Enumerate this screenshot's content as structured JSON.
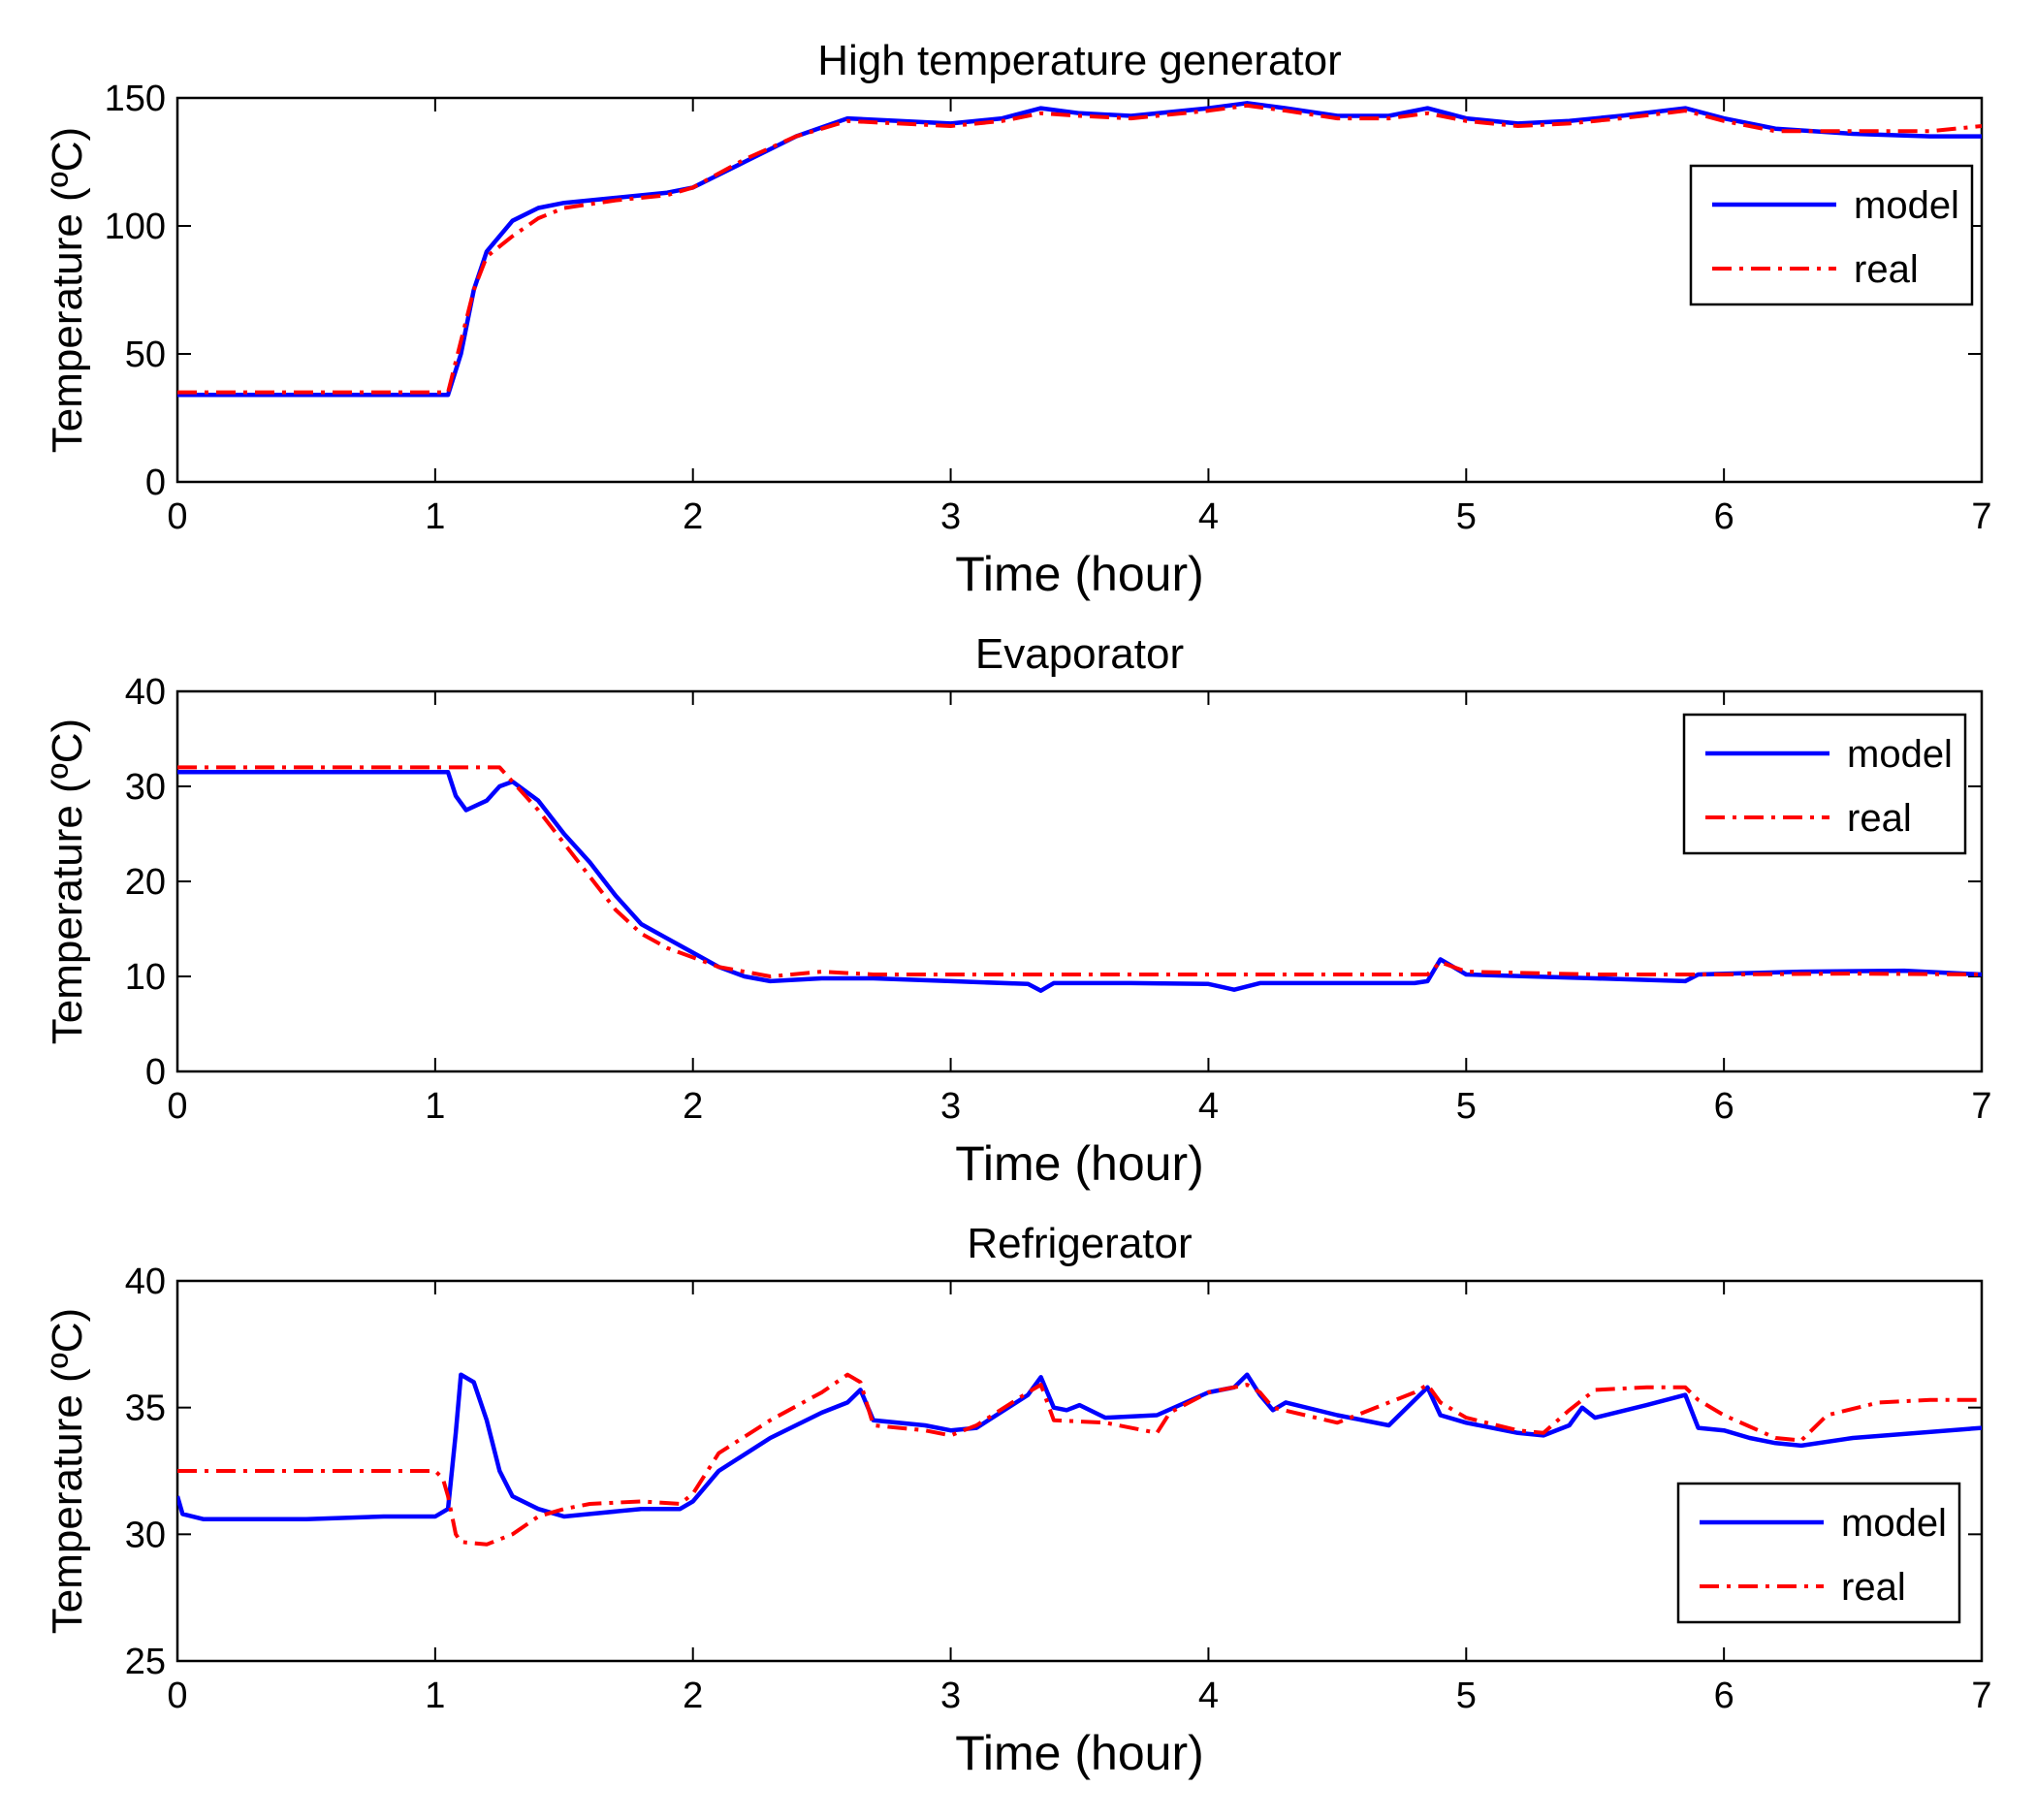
{
  "chart_data": [
    {
      "type": "line",
      "title": "High temperature generator",
      "xlabel": "Time (hour)",
      "ylabel": "Temperature (ºC)",
      "xlim": [
        0,
        7
      ],
      "ylim": [
        0,
        150
      ],
      "xticks": [
        "0",
        "1",
        "2",
        "3",
        "4",
        "5",
        "6",
        "7"
      ],
      "yticks": [
        "0",
        "50",
        "100",
        "150"
      ],
      "legend_position": "top-right",
      "series": [
        {
          "name": "model",
          "color": "#0000ff",
          "style": "solid",
          "x": [
            0,
            0.3,
            0.6,
            0.9,
            1.05,
            1.1,
            1.15,
            1.2,
            1.3,
            1.4,
            1.5,
            1.7,
            1.9,
            2.0,
            2.2,
            2.4,
            2.6,
            2.8,
            3.0,
            3.2,
            3.35,
            3.5,
            3.7,
            4.0,
            4.15,
            4.3,
            4.5,
            4.7,
            4.85,
            5.0,
            5.2,
            5.4,
            5.6,
            5.85,
            6.0,
            6.2,
            6.5,
            6.8,
            7.0
          ],
          "values": [
            34,
            34,
            34,
            34,
            34,
            50,
            75,
            90,
            102,
            107,
            109,
            111,
            113,
            115,
            125,
            135,
            142,
            141,
            140,
            142,
            146,
            144,
            143,
            146,
            148,
            146,
            143,
            143,
            146,
            142,
            140,
            141,
            143,
            146,
            142,
            138,
            136,
            135,
            135
          ]
        },
        {
          "name": "real",
          "color": "#ff0000",
          "style": "dashdot",
          "x": [
            0,
            0.3,
            0.6,
            0.9,
            1.05,
            1.1,
            1.15,
            1.2,
            1.3,
            1.4,
            1.5,
            1.7,
            1.9,
            2.0,
            2.2,
            2.4,
            2.6,
            2.8,
            3.0,
            3.2,
            3.35,
            3.5,
            3.7,
            4.0,
            4.15,
            4.3,
            4.5,
            4.7,
            4.85,
            5.0,
            5.2,
            5.4,
            5.6,
            5.85,
            6.0,
            6.2,
            6.5,
            6.8,
            7.0
          ],
          "values": [
            35,
            35,
            35,
            35,
            35,
            55,
            75,
            88,
            96,
            103,
            107,
            110,
            112,
            115,
            126,
            135,
            141,
            140,
            139,
            141,
            144,
            143,
            142,
            145,
            147,
            145,
            142,
            142,
            144,
            141,
            139,
            140,
            142,
            145,
            141,
            137,
            137,
            137,
            139
          ]
        }
      ]
    },
    {
      "type": "line",
      "title": "Evaporator",
      "xlabel": "Time (hour)",
      "ylabel": "Temperature (ºC)",
      "xlim": [
        0,
        7
      ],
      "ylim": [
        0,
        40
      ],
      "xticks": [
        "0",
        "1",
        "2",
        "3",
        "4",
        "5",
        "6",
        "7"
      ],
      "yticks": [
        "0",
        "10",
        "20",
        "30",
        "40"
      ],
      "legend_position": "top-right",
      "series": [
        {
          "name": "model",
          "color": "#0000ff",
          "style": "solid",
          "x": [
            0,
            0.5,
            0.8,
            1.0,
            1.05,
            1.08,
            1.12,
            1.2,
            1.25,
            1.3,
            1.4,
            1.5,
            1.6,
            1.7,
            1.8,
            1.9,
            2.0,
            2.1,
            2.2,
            2.3,
            2.5,
            2.7,
            3.0,
            3.3,
            3.35,
            3.4,
            3.7,
            4.0,
            4.1,
            4.2,
            4.5,
            4.8,
            4.85,
            4.9,
            5.0,
            5.5,
            5.85,
            5.9,
            6.3,
            6.7,
            7.0
          ],
          "values": [
            31.5,
            31.5,
            31.5,
            31.5,
            31.5,
            29,
            27.5,
            28.5,
            30,
            30.5,
            28.5,
            25,
            22,
            18.5,
            15.5,
            14,
            12.5,
            11,
            10,
            9.5,
            9.8,
            9.8,
            9.5,
            9.2,
            8.5,
            9.3,
            9.3,
            9.2,
            8.6,
            9.3,
            9.3,
            9.3,
            9.5,
            11.8,
            10.2,
            9.8,
            9.5,
            10.2,
            10.5,
            10.6,
            10.2
          ]
        },
        {
          "name": "real",
          "color": "#ff0000",
          "style": "dashdot",
          "x": [
            0,
            0.5,
            0.8,
            1.0,
            1.1,
            1.2,
            1.25,
            1.3,
            1.4,
            1.5,
            1.6,
            1.7,
            1.8,
            1.9,
            2.0,
            2.1,
            2.2,
            2.3,
            2.5,
            2.7,
            3.0,
            3.5,
            4.0,
            4.5,
            4.85,
            4.9,
            5.0,
            5.5,
            6.0,
            6.5,
            7.0
          ],
          "values": [
            32,
            32,
            32,
            32,
            32,
            32,
            32,
            30.5,
            27.5,
            24,
            20.5,
            17,
            14.5,
            13,
            12,
            11,
            10.5,
            10,
            10.5,
            10.2,
            10.2,
            10.2,
            10.2,
            10.2,
            10.2,
            11.5,
            10.5,
            10.2,
            10.2,
            10.3,
            10.2
          ]
        }
      ]
    },
    {
      "type": "line",
      "title": "Refrigerator",
      "xlabel": "Time (hour)",
      "ylabel": "Temperature (ºC)",
      "xlim": [
        0,
        7
      ],
      "ylim": [
        25,
        40
      ],
      "xticks": [
        "0",
        "1",
        "2",
        "3",
        "4",
        "5",
        "6",
        "7"
      ],
      "yticks": [
        "25",
        "30",
        "35",
        "40"
      ],
      "legend_position": "bottom-right",
      "series": [
        {
          "name": "model",
          "color": "#0000ff",
          "style": "solid",
          "x": [
            0,
            0.02,
            0.1,
            0.5,
            0.8,
            1.0,
            1.05,
            1.08,
            1.1,
            1.15,
            1.2,
            1.25,
            1.3,
            1.4,
            1.5,
            1.6,
            1.8,
            1.95,
            2.0,
            2.1,
            2.3,
            2.5,
            2.6,
            2.65,
            2.7,
            2.9,
            3.0,
            3.1,
            3.3,
            3.35,
            3.4,
            3.45,
            3.5,
            3.6,
            3.8,
            4.0,
            4.1,
            4.15,
            4.2,
            4.25,
            4.3,
            4.5,
            4.7,
            4.85,
            4.9,
            5.0,
            5.2,
            5.3,
            5.4,
            5.45,
            5.5,
            5.7,
            5.85,
            5.9,
            6.0,
            6.1,
            6.2,
            6.3,
            6.5,
            7.0
          ],
          "values": [
            31.5,
            30.8,
            30.6,
            30.6,
            30.7,
            30.7,
            31,
            34,
            36.3,
            36,
            34.5,
            32.5,
            31.5,
            31,
            30.7,
            30.8,
            31,
            31,
            31.3,
            32.5,
            33.8,
            34.8,
            35.2,
            35.7,
            34.5,
            34.3,
            34.1,
            34.2,
            35.5,
            36.2,
            35,
            34.9,
            35.1,
            34.6,
            34.7,
            35.6,
            35.8,
            36.3,
            35.5,
            34.9,
            35.2,
            34.7,
            34.3,
            35.8,
            34.7,
            34.4,
            34,
            33.9,
            34.3,
            35,
            34.6,
            35.1,
            35.5,
            34.2,
            34.1,
            33.8,
            33.6,
            33.5,
            33.8,
            34.2
          ]
        },
        {
          "name": "real",
          "color": "#ff0000",
          "style": "dashdot",
          "x": [
            0,
            0.5,
            1.0,
            1.03,
            1.05,
            1.08,
            1.1,
            1.2,
            1.3,
            1.4,
            1.5,
            1.6,
            1.8,
            1.95,
            2.0,
            2.1,
            2.3,
            2.5,
            2.6,
            2.65,
            2.7,
            2.9,
            3.0,
            3.1,
            3.3,
            3.35,
            3.4,
            3.6,
            3.8,
            3.85,
            4.0,
            4.15,
            4.2,
            4.25,
            4.5,
            4.8,
            4.85,
            4.9,
            5.0,
            5.2,
            5.3,
            5.4,
            5.5,
            5.7,
            5.85,
            5.9,
            6.0,
            6.2,
            6.3,
            6.4,
            6.6,
            6.8,
            7.0
          ],
          "values": [
            32.5,
            32.5,
            32.5,
            32.2,
            31.5,
            30,
            29.7,
            29.6,
            30,
            30.7,
            31,
            31.2,
            31.3,
            31.2,
            31.6,
            33.2,
            34.5,
            35.6,
            36.3,
            36,
            34.3,
            34.1,
            33.9,
            34.3,
            35.6,
            35.9,
            34.5,
            34.4,
            34,
            34.8,
            35.6,
            35.9,
            35.6,
            35,
            34.4,
            35.6,
            35.9,
            35.2,
            34.6,
            34.1,
            34,
            34.9,
            35.7,
            35.8,
            35.8,
            35.3,
            34.7,
            33.8,
            33.7,
            34.7,
            35.2,
            35.3,
            35.3
          ]
        }
      ]
    }
  ]
}
